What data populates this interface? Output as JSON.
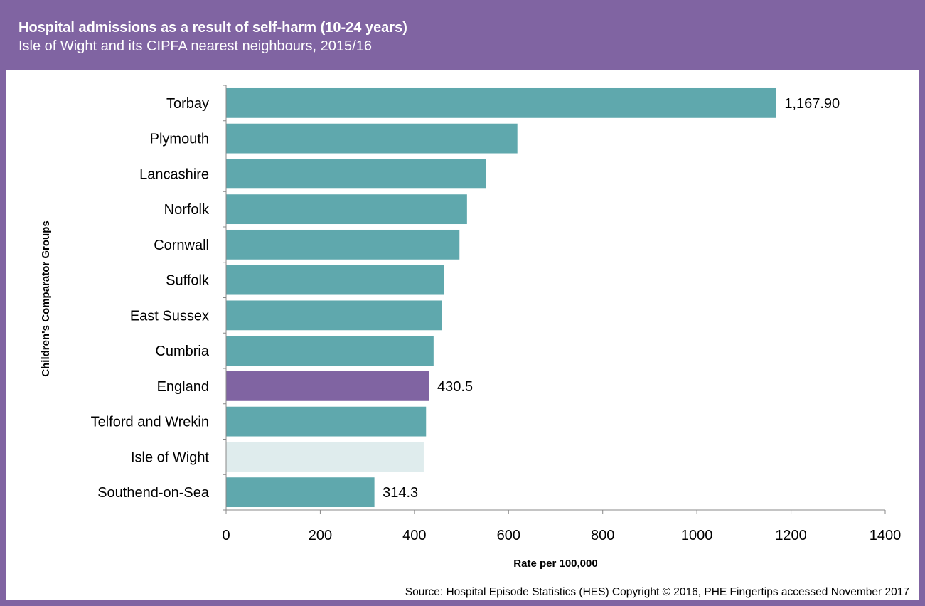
{
  "header": {
    "title": "Hospital admissions as a result of self-harm (10-24 years)",
    "subtitle": "Isle of Wight and its CIPFA nearest neighbours, 2015/16"
  },
  "source": "Source: Hospital Episode Statistics (HES) Copyright © 2016, PHE Fingertips accessed November 2017",
  "colors": {
    "frame": "#8064a2",
    "bar": "#5fa8ad",
    "highlight": "#8064a2",
    "local": "#dfeced"
  },
  "chart_data": {
    "type": "bar",
    "orientation": "horizontal",
    "xlabel": "Rate per 100,000",
    "ylabel": "Children's Comparator Groups",
    "xlim": [
      0,
      1400
    ],
    "xticks": [
      0,
      200,
      400,
      600,
      800,
      1000,
      1200,
      1400
    ],
    "grid": false,
    "categories": [
      "Torbay",
      "Plymouth",
      "Lancashire",
      "Norfolk",
      "Cornwall",
      "Suffolk",
      "East Sussex",
      "Cumbria",
      "England",
      "Telford and Wrekin",
      "Isle of Wight",
      "Southend-on-Sea"
    ],
    "values": [
      1167.9,
      618,
      551,
      511,
      495,
      462,
      458,
      440,
      430.5,
      424,
      419,
      314.3
    ],
    "bar_styles": [
      "normal",
      "normal",
      "normal",
      "normal",
      "normal",
      "normal",
      "normal",
      "normal",
      "highlight",
      "normal",
      "local",
      "normal"
    ],
    "data_labels": [
      "1,167.90",
      "",
      "",
      "",
      "",
      "",
      "",
      "",
      "430.5",
      "",
      "",
      "314.3"
    ]
  }
}
